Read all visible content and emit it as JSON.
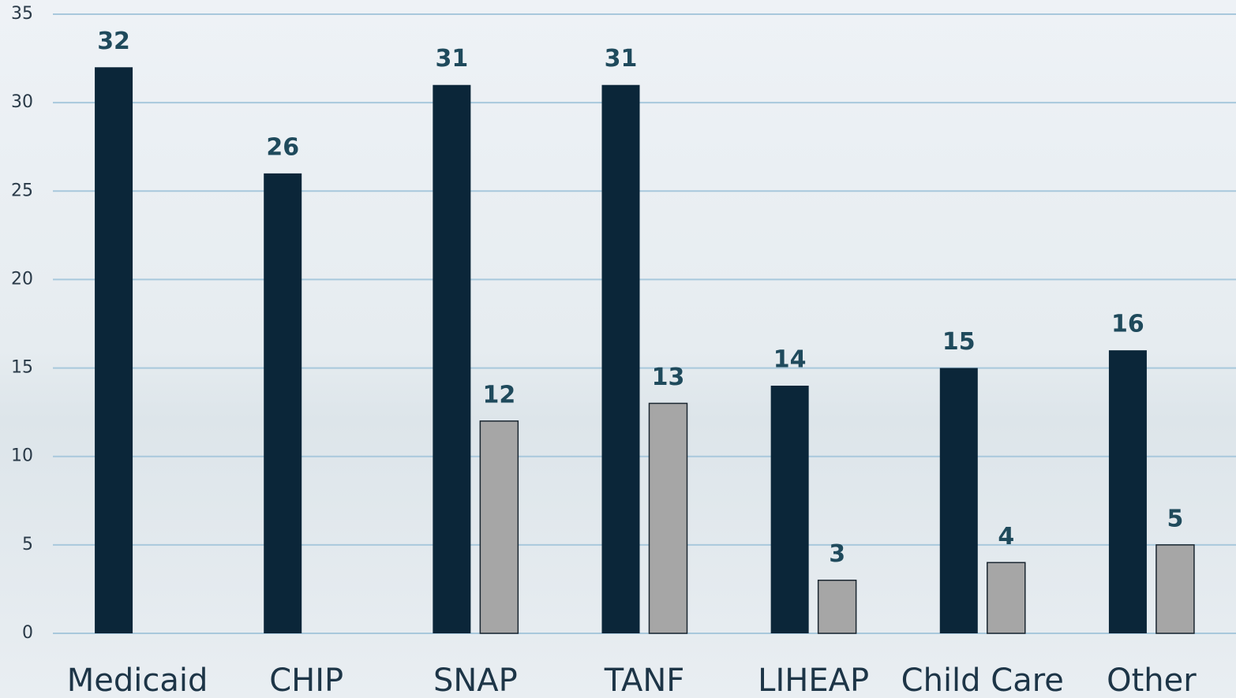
{
  "chart_data": {
    "type": "bar",
    "categories": [
      "Medicaid",
      "CHIP",
      "SNAP",
      "TANF",
      "LIHEAP",
      "Child Care",
      "Other"
    ],
    "series": [
      {
        "color": "#0b2639",
        "values": [
          32,
          26,
          31,
          31,
          14,
          15,
          16
        ]
      },
      {
        "color": "#a6a6a6",
        "values": [
          null,
          null,
          12,
          13,
          3,
          4,
          5
        ]
      }
    ],
    "ylim": [
      0,
      35
    ],
    "yticks": [
      0,
      5,
      10,
      15,
      20,
      25,
      30,
      35
    ],
    "grid": true
  }
}
